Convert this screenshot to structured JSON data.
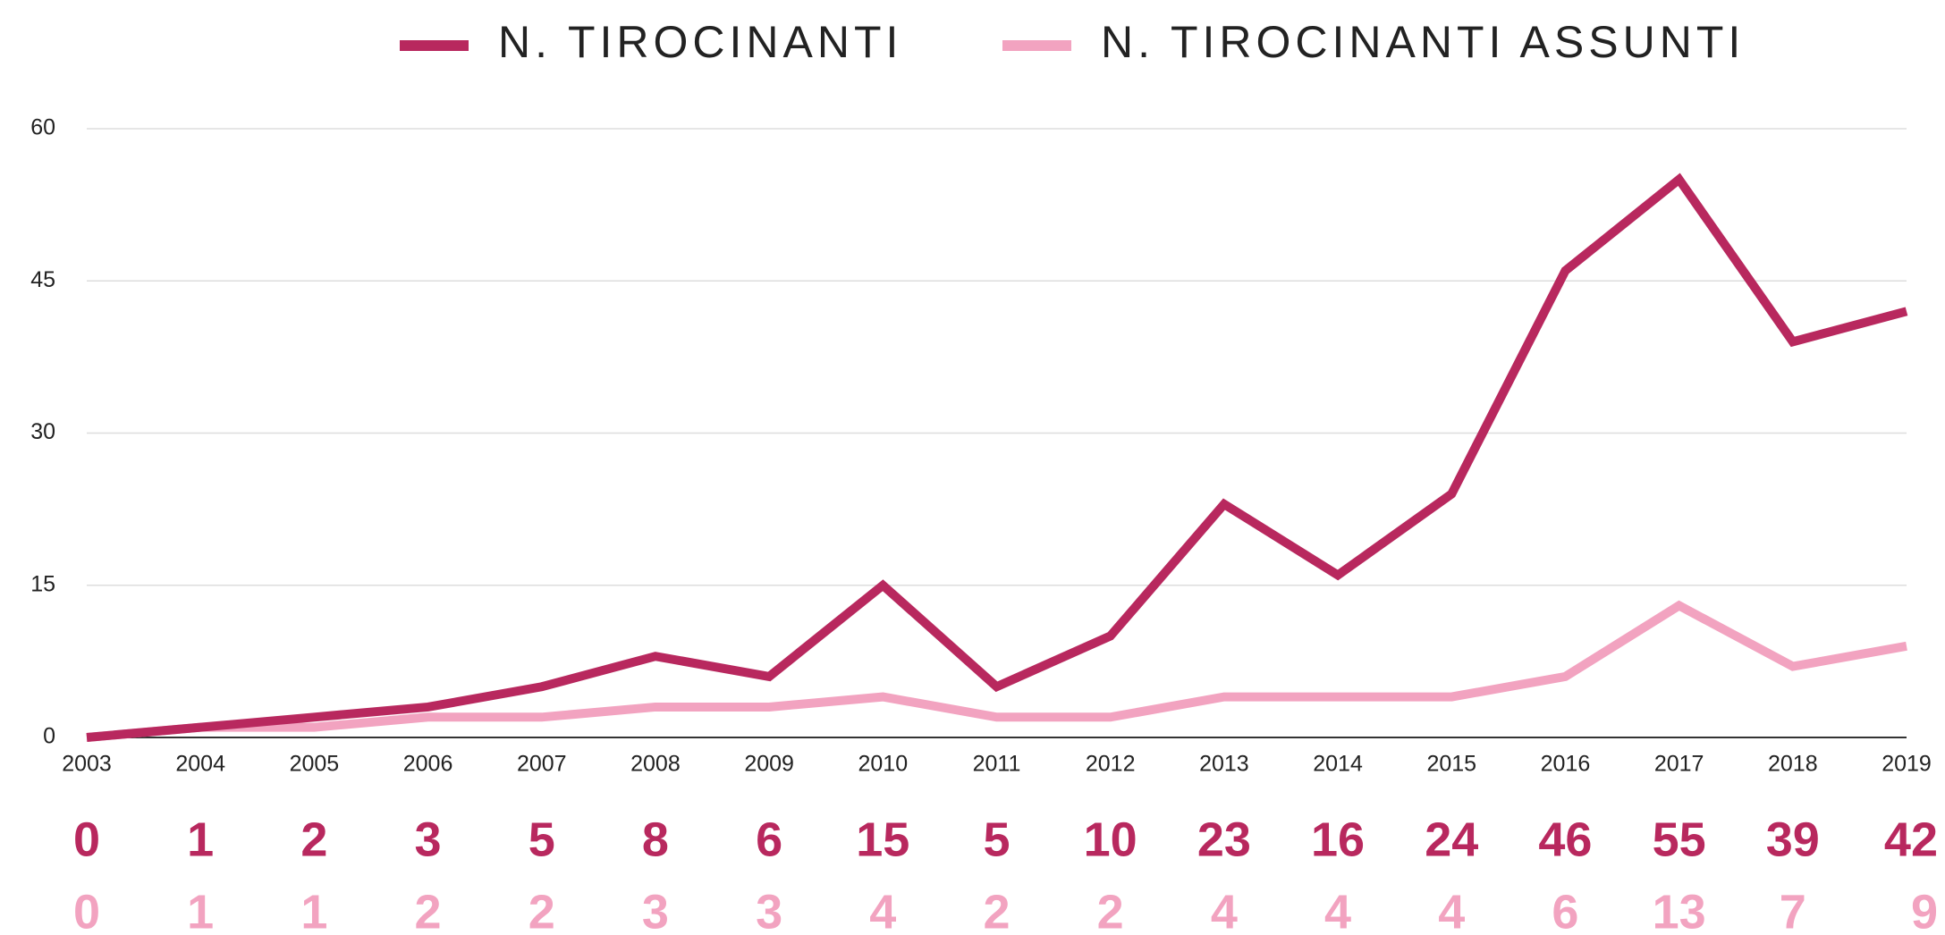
{
  "chart_data": {
    "type": "line",
    "categories": [
      "2003",
      "2004",
      "2005",
      "2006",
      "2007",
      "2008",
      "2009",
      "2010",
      "2011",
      "2012",
      "2013",
      "2014",
      "2015",
      "2016",
      "2017",
      "2018",
      "2019"
    ],
    "series": [
      {
        "name": "N. TIROCINANTI",
        "color": "#b8285e",
        "values": [
          0,
          1,
          2,
          3,
          5,
          8,
          6,
          15,
          5,
          10,
          23,
          16,
          24,
          46,
          55,
          39,
          42
        ]
      },
      {
        "name": "N. TIROCINANTI ASSUNTI",
        "color": "#f2a3c0",
        "values": [
          0,
          1,
          1,
          2,
          2,
          3,
          3,
          4,
          2,
          2,
          4,
          4,
          4,
          6,
          13,
          7,
          9
        ]
      }
    ],
    "ylim": [
      0,
      60
    ],
    "yticks": [
      0,
      15,
      30,
      45,
      60
    ],
    "grid": true,
    "legend": "top"
  }
}
